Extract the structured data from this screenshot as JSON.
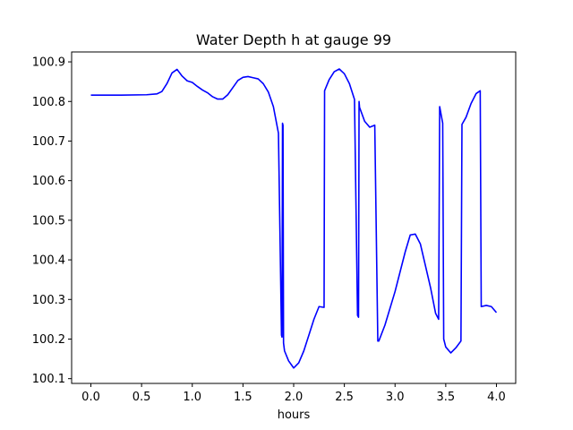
{
  "chart_data": {
    "type": "line",
    "title": "Water Depth h at gauge 99",
    "xlabel": "hours",
    "ylabel": "",
    "xlim": [
      -0.19,
      4.19
    ],
    "ylim": [
      100.088,
      100.925
    ],
    "xticks": [
      0.0,
      0.5,
      1.0,
      1.5,
      2.0,
      2.5,
      3.0,
      3.5,
      4.0
    ],
    "xtick_labels": [
      "0.0",
      "0.5",
      "1.0",
      "1.5",
      "2.0",
      "2.5",
      "3.0",
      "3.5",
      "4.0"
    ],
    "yticks": [
      100.1,
      100.2,
      100.3,
      100.4,
      100.5,
      100.6,
      100.7,
      100.8,
      100.9
    ],
    "ytick_labels": [
      "100.1",
      "100.2",
      "100.3",
      "100.4",
      "100.5",
      "100.6",
      "100.7",
      "100.8",
      "100.9"
    ],
    "grid": false,
    "series": [
      {
        "color": "#0000ff",
        "x": [
          0.0,
          0.3,
          0.55,
          0.65,
          0.7,
          0.75,
          0.8,
          0.85,
          0.9,
          0.95,
          1.0,
          1.05,
          1.1,
          1.15,
          1.2,
          1.25,
          1.3,
          1.35,
          1.4,
          1.45,
          1.5,
          1.55,
          1.6,
          1.65,
          1.7,
          1.75,
          1.8,
          1.85,
          1.88,
          1.885,
          1.89,
          1.895,
          1.9,
          1.91,
          1.95,
          2.0,
          2.05,
          2.1,
          2.15,
          2.2,
          2.25,
          2.3,
          2.305,
          2.35,
          2.4,
          2.45,
          2.5,
          2.55,
          2.6,
          2.63,
          2.64,
          2.645,
          2.65,
          2.7,
          2.75,
          2.8,
          2.83,
          2.84,
          2.9,
          3.0,
          3.1,
          3.15,
          3.2,
          3.25,
          3.3,
          3.35,
          3.4,
          3.43,
          3.44,
          3.47,
          3.48,
          3.5,
          3.55,
          3.6,
          3.65,
          3.66,
          3.7,
          3.75,
          3.8,
          3.84,
          3.85,
          3.9,
          3.95,
          4.0
        ],
        "y": [
          100.816,
          100.816,
          100.817,
          100.819,
          100.825,
          100.845,
          100.872,
          100.881,
          100.864,
          100.852,
          100.848,
          100.838,
          100.829,
          100.822,
          100.812,
          100.806,
          100.806,
          100.817,
          100.835,
          100.853,
          100.861,
          100.863,
          100.86,
          100.857,
          100.845,
          100.824,
          100.787,
          100.72,
          100.21,
          100.205,
          100.745,
          100.74,
          100.19,
          100.17,
          100.145,
          100.127,
          100.14,
          100.17,
          100.21,
          100.25,
          100.282,
          100.28,
          100.827,
          100.855,
          100.875,
          100.882,
          100.87,
          100.845,
          100.805,
          100.26,
          100.255,
          100.8,
          100.785,
          100.75,
          100.735,
          100.74,
          100.195,
          100.195,
          100.235,
          100.32,
          100.42,
          100.463,
          100.465,
          100.44,
          100.385,
          100.33,
          100.265,
          100.25,
          100.787,
          100.745,
          100.2,
          100.18,
          100.165,
          100.178,
          100.195,
          100.742,
          100.76,
          100.795,
          100.82,
          100.827,
          100.282,
          100.285,
          100.282,
          100.267
        ]
      }
    ]
  }
}
